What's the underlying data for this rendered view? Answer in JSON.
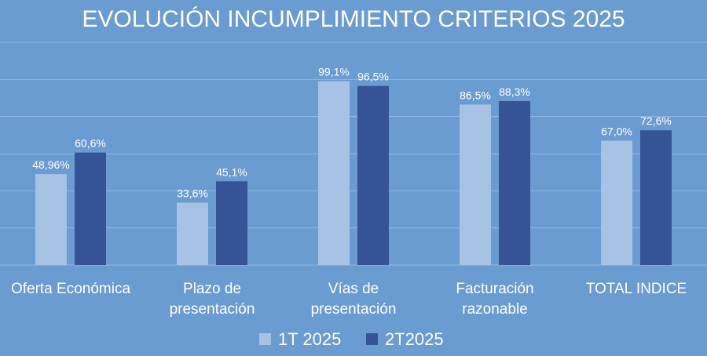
{
  "chart_data": {
    "type": "bar",
    "title": "EVOLUCIÓN INCUMPLIMIENTO CRITERIOS 2025",
    "xlabel": "",
    "ylabel": "",
    "categories": [
      [
        "Oferta Económica"
      ],
      [
        "Plazo de",
        "presentación"
      ],
      [
        "Vías de",
        "presentación"
      ],
      [
        "Facturación",
        "razonable"
      ],
      [
        "TOTAL INDICE"
      ]
    ],
    "series": [
      {
        "name": "1T 2025",
        "color": "#a6c3e6",
        "values": [
          48.96,
          33.6,
          99.1,
          86.5,
          67.0
        ],
        "labels": [
          "48,96%",
          "33,6%",
          "99,1%",
          "86,5%",
          "67,0%"
        ]
      },
      {
        "name": "2T2025",
        "color": "#355395",
        "values": [
          60.6,
          45.1,
          96.5,
          88.3,
          72.6
        ],
        "labels": [
          "60,6%",
          "45,1%",
          "96,5%",
          "88,3%",
          "72,6%"
        ]
      }
    ],
    "ylim": [
      0,
      120
    ],
    "grid": true,
    "legend": "bottom"
  }
}
